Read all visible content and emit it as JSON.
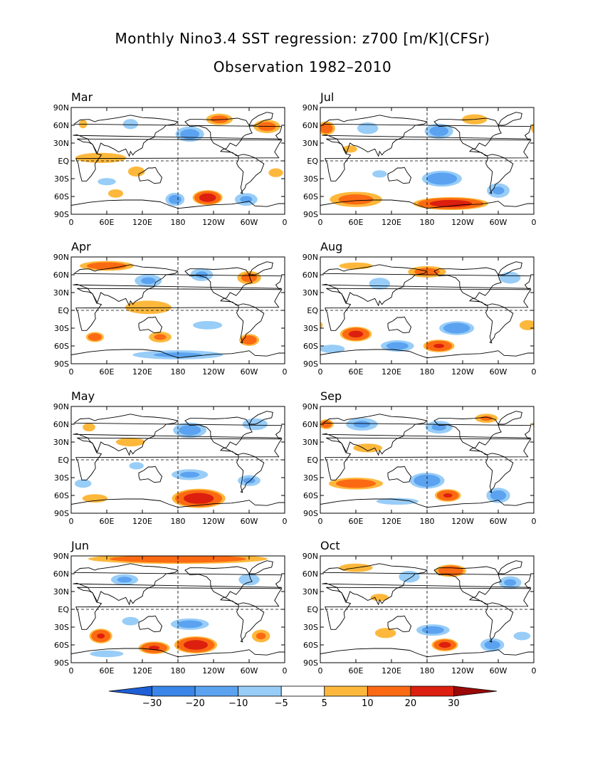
{
  "figure": {
    "title": "Monthly Nino3.4 SST regression: z700 [m/K](CFSr)",
    "subtitle": "Observation 1982–2010"
  },
  "chart_data": {
    "type": "heatmap",
    "variable": "z700",
    "units": "m/K",
    "x_ticks": [
      "0",
      "60E",
      "120E",
      "180",
      "120W",
      "60W",
      "0"
    ],
    "y_ticks": [
      "90N",
      "60N",
      "30N",
      "EQ",
      "30S",
      "60S",
      "90S"
    ],
    "x_range_lon": [
      0,
      360
    ],
    "y_range_lat": [
      -90,
      90
    ],
    "colorbar": {
      "levels": [
        -30,
        -20,
        -10,
        -5,
        5,
        10,
        20,
        30
      ],
      "tick_labels": [
        "-30",
        "-20",
        "-10",
        "-5",
        "5",
        "10",
        "20",
        "30"
      ],
      "colors": [
        "#1e5fd6",
        "#3a86e8",
        "#5ba3f0",
        "#98cdf8",
        "#ffffff",
        "#fdb83c",
        "#fb6a12",
        "#dc1f0e",
        "#9a0808"
      ]
    },
    "panels": [
      {
        "month": "Mar",
        "anomalies": [
          {
            "lon": 330,
            "lat": 58,
            "rx": 28,
            "ry": 14,
            "v": 12
          },
          {
            "lon": 250,
            "lat": 70,
            "rx": 28,
            "ry": 12,
            "v": 12
          },
          {
            "lon": 200,
            "lat": 45,
            "rx": 30,
            "ry": 16,
            "v": -12
          },
          {
            "lon": 100,
            "lat": 62,
            "rx": 18,
            "ry": 12,
            "v": -8
          },
          {
            "lon": 20,
            "lat": 62,
            "rx": 10,
            "ry": 10,
            "v": 8
          },
          {
            "lon": 50,
            "lat": 5,
            "rx": 70,
            "ry": 14,
            "v": 6
          },
          {
            "lon": 110,
            "lat": -18,
            "rx": 20,
            "ry": 12,
            "v": 8
          },
          {
            "lon": 230,
            "lat": -62,
            "rx": 28,
            "ry": 14,
            "v": 25
          },
          {
            "lon": 175,
            "lat": -65,
            "rx": 20,
            "ry": 14,
            "v": -12
          },
          {
            "lon": 295,
            "lat": -65,
            "rx": 25,
            "ry": 14,
            "v": -10
          },
          {
            "lon": 345,
            "lat": -20,
            "rx": 20,
            "ry": 12,
            "v": 6
          },
          {
            "lon": 75,
            "lat": -55,
            "rx": 18,
            "ry": 10,
            "v": 8
          },
          {
            "lon": 60,
            "lat": -35,
            "rx": 25,
            "ry": 10,
            "v": -6
          }
        ]
      },
      {
        "month": "Jul",
        "anomalies": [
          {
            "lon": 10,
            "lat": 55,
            "rx": 18,
            "ry": 14,
            "v": 14
          },
          {
            "lon": 200,
            "lat": 50,
            "rx": 30,
            "ry": 16,
            "v": -12
          },
          {
            "lon": 80,
            "lat": 55,
            "rx": 25,
            "ry": 14,
            "v": -8
          },
          {
            "lon": 260,
            "lat": 70,
            "rx": 30,
            "ry": 12,
            "v": 8
          },
          {
            "lon": 50,
            "lat": 20,
            "rx": 20,
            "ry": 10,
            "v": 6
          },
          {
            "lon": 205,
            "lat": -30,
            "rx": 40,
            "ry": 16,
            "v": -15
          },
          {
            "lon": 220,
            "lat": -72,
            "rx": 70,
            "ry": 12,
            "v": 25
          },
          {
            "lon": 60,
            "lat": -65,
            "rx": 55,
            "ry": 16,
            "v": 12
          },
          {
            "lon": 300,
            "lat": -50,
            "rx": 25,
            "ry": 16,
            "v": -10
          },
          {
            "lon": 100,
            "lat": -22,
            "rx": 20,
            "ry": 10,
            "v": -6
          }
        ]
      },
      {
        "month": "Apr",
        "anomalies": [
          {
            "lon": 60,
            "lat": 75,
            "rx": 55,
            "ry": 10,
            "v": 14
          },
          {
            "lon": 130,
            "lat": 50,
            "rx": 30,
            "ry": 14,
            "v": -10
          },
          {
            "lon": 300,
            "lat": 55,
            "rx": 25,
            "ry": 14,
            "v": 12
          },
          {
            "lon": 220,
            "lat": 60,
            "rx": 25,
            "ry": 14,
            "v": -10
          },
          {
            "lon": 130,
            "lat": 5,
            "rx": 55,
            "ry": 16,
            "v": 8
          },
          {
            "lon": 40,
            "lat": -45,
            "rx": 18,
            "ry": 10,
            "v": 15
          },
          {
            "lon": 150,
            "lat": -45,
            "rx": 25,
            "ry": 12,
            "v": 10
          },
          {
            "lon": 300,
            "lat": -50,
            "rx": 20,
            "ry": 12,
            "v": 15
          },
          {
            "lon": 180,
            "lat": -75,
            "rx": 100,
            "ry": 10,
            "v": -10
          },
          {
            "lon": 230,
            "lat": -25,
            "rx": 35,
            "ry": 10,
            "v": -8
          }
        ]
      },
      {
        "month": "Aug",
        "anomalies": [
          {
            "lon": 180,
            "lat": 65,
            "rx": 40,
            "ry": 12,
            "v": 12
          },
          {
            "lon": 60,
            "lat": 75,
            "rx": 40,
            "ry": 8,
            "v": 8
          },
          {
            "lon": 100,
            "lat": 45,
            "rx": 25,
            "ry": 14,
            "v": -8
          },
          {
            "lon": 320,
            "lat": 55,
            "rx": 25,
            "ry": 14,
            "v": -8
          },
          {
            "lon": 60,
            "lat": -40,
            "rx": 30,
            "ry": 14,
            "v": 22
          },
          {
            "lon": 200,
            "lat": -60,
            "rx": 30,
            "ry": 12,
            "v": 20
          },
          {
            "lon": 230,
            "lat": -30,
            "rx": 35,
            "ry": 14,
            "v": -15
          },
          {
            "lon": 130,
            "lat": -60,
            "rx": 35,
            "ry": 12,
            "v": -12
          },
          {
            "lon": 350,
            "lat": -25,
            "rx": 20,
            "ry": 12,
            "v": 8
          },
          {
            "lon": 20,
            "lat": -65,
            "rx": 30,
            "ry": 10,
            "v": -8
          }
        ]
      },
      {
        "month": "May",
        "anomalies": [
          {
            "lon": 30,
            "lat": 55,
            "rx": 15,
            "ry": 10,
            "v": 8
          },
          {
            "lon": 200,
            "lat": 50,
            "rx": 35,
            "ry": 16,
            "v": -12
          },
          {
            "lon": 310,
            "lat": 60,
            "rx": 30,
            "ry": 14,
            "v": -8
          },
          {
            "lon": 100,
            "lat": 30,
            "rx": 40,
            "ry": 12,
            "v": 6
          },
          {
            "lon": 215,
            "lat": -65,
            "rx": 50,
            "ry": 18,
            "v": 25
          },
          {
            "lon": 200,
            "lat": -25,
            "rx": 40,
            "ry": 12,
            "v": -10
          },
          {
            "lon": 300,
            "lat": -35,
            "rx": 25,
            "ry": 12,
            "v": -10
          },
          {
            "lon": 40,
            "lat": -65,
            "rx": 30,
            "ry": 10,
            "v": 8
          },
          {
            "lon": 110,
            "lat": -10,
            "rx": 20,
            "ry": 10,
            "v": -6
          },
          {
            "lon": 20,
            "lat": -40,
            "rx": 20,
            "ry": 10,
            "v": -8
          }
        ]
      },
      {
        "month": "Sep",
        "anomalies": [
          {
            "lon": 10,
            "lat": 60,
            "rx": 15,
            "ry": 10,
            "v": 14
          },
          {
            "lon": 70,
            "lat": 60,
            "rx": 35,
            "ry": 14,
            "v": -10
          },
          {
            "lon": 200,
            "lat": 55,
            "rx": 30,
            "ry": 14,
            "v": -10
          },
          {
            "lon": 280,
            "lat": 70,
            "rx": 25,
            "ry": 10,
            "v": 10
          },
          {
            "lon": 80,
            "lat": 20,
            "rx": 40,
            "ry": 12,
            "v": 6
          },
          {
            "lon": 60,
            "lat": -40,
            "rx": 55,
            "ry": 12,
            "v": 14
          },
          {
            "lon": 215,
            "lat": -60,
            "rx": 25,
            "ry": 12,
            "v": 20
          },
          {
            "lon": 180,
            "lat": -35,
            "rx": 35,
            "ry": 16,
            "v": -15
          },
          {
            "lon": 300,
            "lat": -60,
            "rx": 25,
            "ry": 16,
            "v": -12
          },
          {
            "lon": 130,
            "lat": -70,
            "rx": 50,
            "ry": 8,
            "v": -8
          }
        ]
      },
      {
        "month": "Jun",
        "anomalies": [
          {
            "lon": 180,
            "lat": 85,
            "rx": 180,
            "ry": 10,
            "v": 15
          },
          {
            "lon": 90,
            "lat": 50,
            "rx": 30,
            "ry": 12,
            "v": -10
          },
          {
            "lon": 300,
            "lat": 50,
            "rx": 25,
            "ry": 14,
            "v": -8
          },
          {
            "lon": 50,
            "lat": -45,
            "rx": 22,
            "ry": 14,
            "v": 20
          },
          {
            "lon": 210,
            "lat": -60,
            "rx": 40,
            "ry": 16,
            "v": 25
          },
          {
            "lon": 140,
            "lat": -65,
            "rx": 30,
            "ry": 12,
            "v": 20
          },
          {
            "lon": 320,
            "lat": -45,
            "rx": 20,
            "ry": 14,
            "v": 10
          },
          {
            "lon": 200,
            "lat": -25,
            "rx": 40,
            "ry": 12,
            "v": -12
          },
          {
            "lon": 100,
            "lat": -20,
            "rx": 20,
            "ry": 10,
            "v": -8
          },
          {
            "lon": 60,
            "lat": -75,
            "rx": 40,
            "ry": 8,
            "v": -8
          }
        ]
      },
      {
        "month": "Oct",
        "anomalies": [
          {
            "lon": 220,
            "lat": 65,
            "rx": 30,
            "ry": 12,
            "v": 18
          },
          {
            "lon": 60,
            "lat": 70,
            "rx": 40,
            "ry": 10,
            "v": 8
          },
          {
            "lon": 320,
            "lat": 45,
            "rx": 25,
            "ry": 14,
            "v": -10
          },
          {
            "lon": 150,
            "lat": 55,
            "rx": 25,
            "ry": 14,
            "v": -8
          },
          {
            "lon": 100,
            "lat": 20,
            "rx": 25,
            "ry": 10,
            "v": 6
          },
          {
            "lon": 210,
            "lat": -60,
            "rx": 25,
            "ry": 12,
            "v": 22
          },
          {
            "lon": 110,
            "lat": -40,
            "rx": 25,
            "ry": 12,
            "v": 8
          },
          {
            "lon": 190,
            "lat": -35,
            "rx": 35,
            "ry": 12,
            "v": -12
          },
          {
            "lon": 290,
            "lat": -60,
            "rx": 25,
            "ry": 14,
            "v": -12
          },
          {
            "lon": 340,
            "lat": -45,
            "rx": 20,
            "ry": 10,
            "v": -8
          }
        ]
      }
    ]
  }
}
